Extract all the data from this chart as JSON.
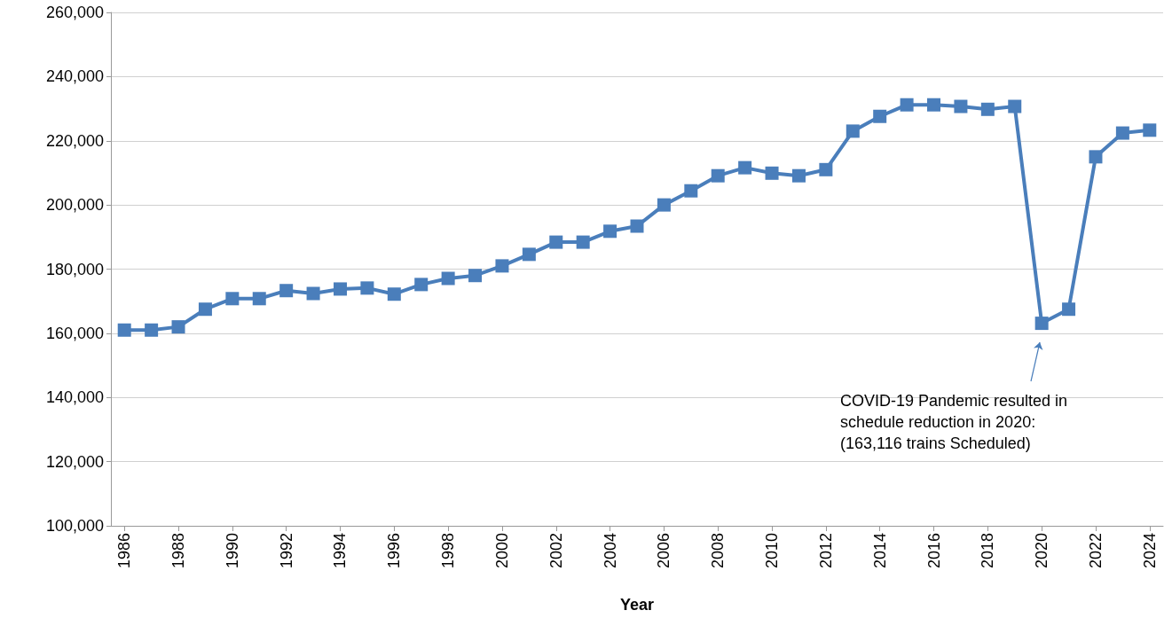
{
  "chart_data": {
    "type": "line",
    "xlabel": "Year",
    "x": [
      1986,
      1987,
      1988,
      1989,
      1990,
      1991,
      1992,
      1993,
      1994,
      1995,
      1996,
      1997,
      1998,
      1999,
      2000,
      2001,
      2002,
      2003,
      2004,
      2005,
      2006,
      2007,
      2008,
      2009,
      2010,
      2011,
      2012,
      2013,
      2014,
      2015,
      2016,
      2017,
      2018,
      2019,
      2020,
      2021,
      2022,
      2023,
      2024
    ],
    "series": [
      {
        "color": "#4a7ebb",
        "values": [
          161000,
          161000,
          162000,
          167500,
          170800,
          170800,
          173300,
          172400,
          173800,
          174100,
          172200,
          175200,
          177100,
          178000,
          181000,
          184600,
          188400,
          188400,
          191800,
          193400,
          200000,
          204400,
          209100,
          211600,
          209900,
          209100,
          211000,
          223000,
          227600,
          231200,
          231200,
          230700,
          229800,
          230700,
          163116,
          167500,
          215000,
          222400,
          223300
        ]
      }
    ],
    "xlim": [
      1985.5,
      2024.5
    ],
    "xticks": [
      1986,
      1988,
      1990,
      1992,
      1994,
      1996,
      1998,
      2000,
      2002,
      2004,
      2006,
      2008,
      2010,
      2012,
      2014,
      2016,
      2018,
      2020,
      2022,
      2024
    ],
    "ylim": [
      100000,
      260000
    ],
    "yticks": [
      {
        "value": 100000,
        "label": "100,000"
      },
      {
        "value": 120000,
        "label": "120,000"
      },
      {
        "value": 140000,
        "label": "140,000"
      },
      {
        "value": 160000,
        "label": "160,000"
      },
      {
        "value": 180000,
        "label": "180,000"
      },
      {
        "value": 200000,
        "label": "200,000"
      },
      {
        "value": 220000,
        "label": "220,000"
      },
      {
        "value": 240000,
        "label": "240,000"
      },
      {
        "value": 260000,
        "label": "260,000"
      }
    ],
    "grid": "y",
    "marker": "square",
    "line_style": "solid",
    "annotations": [
      "COVID-19 Pandemic resulted in\nschedule reduction in 2020:\n(163,116 trains Scheduled)"
    ]
  }
}
